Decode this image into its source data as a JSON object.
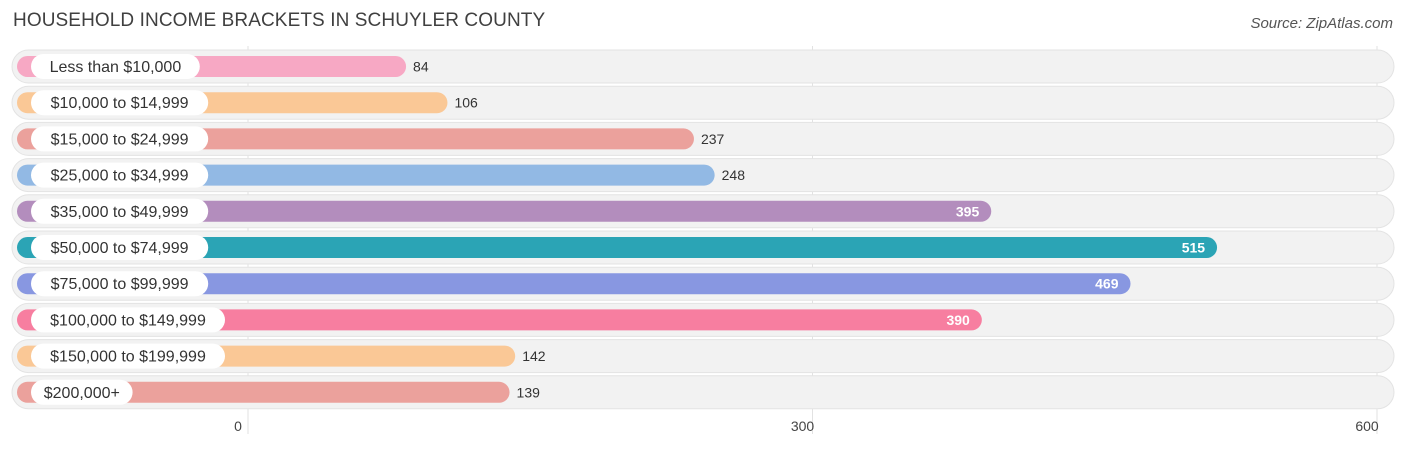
{
  "title": "HOUSEHOLD INCOME BRACKETS IN SCHUYLER COUNTY",
  "source": "Source: ZipAtlas.com",
  "chart_data": {
    "type": "bar",
    "orientation": "horizontal",
    "categories": [
      "Less than $10,000",
      "$10,000 to $14,999",
      "$15,000 to $24,999",
      "$25,000 to $34,999",
      "$35,000 to $49,999",
      "$50,000 to $74,999",
      "$75,000 to $99,999",
      "$100,000 to $149,999",
      "$150,000 to $199,999",
      "$200,000+"
    ],
    "values": [
      84,
      106,
      237,
      248,
      395,
      515,
      469,
      390,
      142,
      139
    ],
    "value_labels": [
      "84",
      "106",
      "237",
      "248",
      "395",
      "515",
      "469",
      "390",
      "142",
      "139"
    ],
    "colors": [
      "#f7a8c4",
      "#fac896",
      "#eba19c",
      "#92b9e4",
      "#b38dbd",
      "#2ba4b5",
      "#8897e1",
      "#f77ea0",
      "#fac896",
      "#eba19c"
    ],
    "xlim": [
      0,
      600
    ],
    "xticks": [
      0,
      300,
      600
    ],
    "xtick_labels": [
      "0",
      "300",
      "600"
    ],
    "grid": true
  }
}
